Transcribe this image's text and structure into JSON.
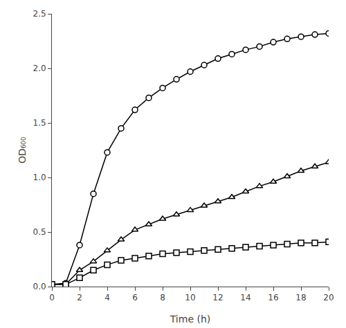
{
  "chart_data": {
    "type": "line",
    "xlabel": "Time (h)",
    "ylabel": "OD₆₀₀",
    "x": [
      0,
      1,
      2,
      3,
      4,
      5,
      6,
      7,
      8,
      9,
      10,
      11,
      12,
      13,
      14,
      15,
      16,
      17,
      18,
      19,
      20
    ],
    "series": [
      {
        "color": "#000000",
        "marker": "circle",
        "values": [
          0.02,
          0.03,
          0.38,
          0.85,
          1.23,
          1.45,
          1.62,
          1.73,
          1.82,
          1.9,
          1.97,
          2.03,
          2.09,
          2.13,
          2.17,
          2.2,
          2.24,
          2.27,
          2.29,
          2.31,
          2.32
        ]
      },
      {
        "color": "#000000",
        "marker": "triangle-up",
        "values": [
          0.02,
          0.02,
          0.15,
          0.23,
          0.33,
          0.43,
          0.52,
          0.57,
          0.62,
          0.66,
          0.7,
          0.74,
          0.78,
          0.82,
          0.87,
          0.92,
          0.96,
          1.01,
          1.06,
          1.1,
          1.14
        ]
      },
      {
        "color": "#000000",
        "marker": "square",
        "values": [
          0.02,
          0.02,
          0.08,
          0.15,
          0.2,
          0.24,
          0.26,
          0.28,
          0.3,
          0.31,
          0.32,
          0.33,
          0.34,
          0.35,
          0.36,
          0.37,
          0.38,
          0.39,
          0.4,
          0.4,
          0.41
        ]
      }
    ],
    "xlim": [
      0,
      20
    ],
    "ylim": [
      0,
      2.5
    ],
    "xticks": [
      0,
      2,
      4,
      6,
      8,
      10,
      12,
      14,
      16,
      18,
      20
    ],
    "yticks": [
      {
        "value": 0,
        "label": "0.0"
      },
      0.5,
      {
        "value": 1.0,
        "label": "1.0"
      },
      1.5,
      {
        "value": 2.0,
        "label": "2.0"
      },
      2.5
    ],
    "grid": false
  }
}
